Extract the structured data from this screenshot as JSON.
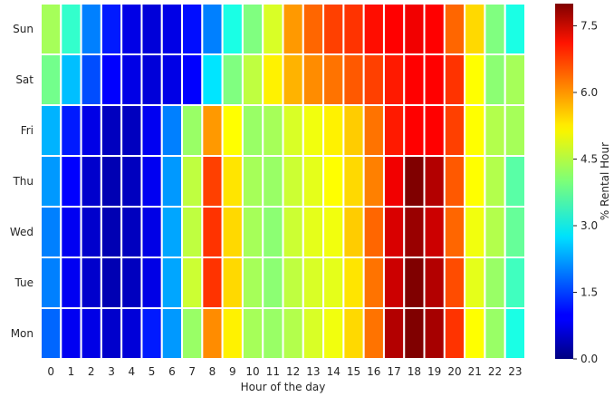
{
  "chart_data": {
    "type": "heatmap",
    "xlabel": "Hour of the day",
    "colorbar_label": "% Rental Hour",
    "colormap": "jet",
    "vmin": 0,
    "vmax": 8,
    "x_categories": [
      "0",
      "1",
      "2",
      "3",
      "4",
      "5",
      "6",
      "7",
      "8",
      "9",
      "10",
      "11",
      "12",
      "13",
      "14",
      "15",
      "16",
      "17",
      "18",
      "19",
      "20",
      "21",
      "22",
      "23"
    ],
    "y_categories": [
      "Sun",
      "Sat",
      "Fri",
      "Thu",
      "Wed",
      "Tue",
      "Mon"
    ],
    "colorbar_ticks": [
      "0.0",
      "1.5",
      "3.0",
      "4.5",
      "6.0",
      "7.5"
    ],
    "grid_color": "#ffffff",
    "values": [
      [
        4.3,
        3.4,
        2.0,
        1.2,
        0.8,
        0.7,
        0.8,
        1.1,
        2.0,
        3.2,
        4.0,
        4.7,
        5.8,
        6.2,
        6.5,
        6.6,
        6.9,
        7.0,
        7.1,
        7.0,
        6.2,
        5.3,
        4.0,
        3.2
      ],
      [
        3.9,
        2.5,
        1.6,
        1.0,
        0.8,
        0.7,
        0.8,
        1.0,
        2.8,
        4.0,
        4.5,
        5.1,
        5.6,
        5.9,
        6.1,
        6.3,
        6.5,
        6.8,
        7.0,
        7.0,
        6.6,
        5.0,
        4.1,
        4.3
      ],
      [
        2.4,
        1.2,
        0.8,
        0.5,
        0.5,
        0.9,
        2.0,
        4.2,
        5.8,
        5.0,
        4.2,
        4.3,
        4.7,
        4.9,
        5.1,
        5.4,
        6.1,
        6.8,
        7.0,
        7.0,
        6.5,
        5.0,
        4.4,
        4.3
      ],
      [
        2.2,
        1.0,
        0.6,
        0.4,
        0.5,
        0.9,
        2.2,
        4.5,
        6.5,
        5.2,
        4.3,
        4.2,
        4.6,
        4.8,
        5.0,
        5.3,
        6.0,
        7.1,
        8.0,
        7.6,
        6.3,
        5.0,
        4.4,
        3.7
      ],
      [
        2.0,
        0.9,
        0.6,
        0.4,
        0.5,
        0.8,
        2.3,
        4.5,
        6.6,
        5.3,
        4.3,
        4.1,
        4.6,
        4.8,
        4.9,
        5.4,
        6.2,
        7.3,
        7.8,
        7.4,
        6.2,
        4.9,
        4.4,
        3.8
      ],
      [
        2.0,
        0.9,
        0.6,
        0.4,
        0.5,
        0.8,
        2.3,
        4.6,
        6.6,
        5.3,
        4.3,
        4.1,
        4.5,
        4.7,
        4.8,
        5.2,
        6.1,
        7.4,
        8.2,
        7.6,
        6.4,
        4.8,
        4.2,
        3.5
      ],
      [
        1.8,
        0.9,
        0.8,
        0.6,
        0.7,
        1.2,
        2.2,
        4.2,
        5.9,
        5.1,
        4.3,
        4.2,
        4.4,
        4.7,
        4.9,
        5.3,
        6.1,
        7.6,
        8.3,
        7.7,
        6.6,
        5.0,
        4.2,
        3.2
      ]
    ]
  }
}
